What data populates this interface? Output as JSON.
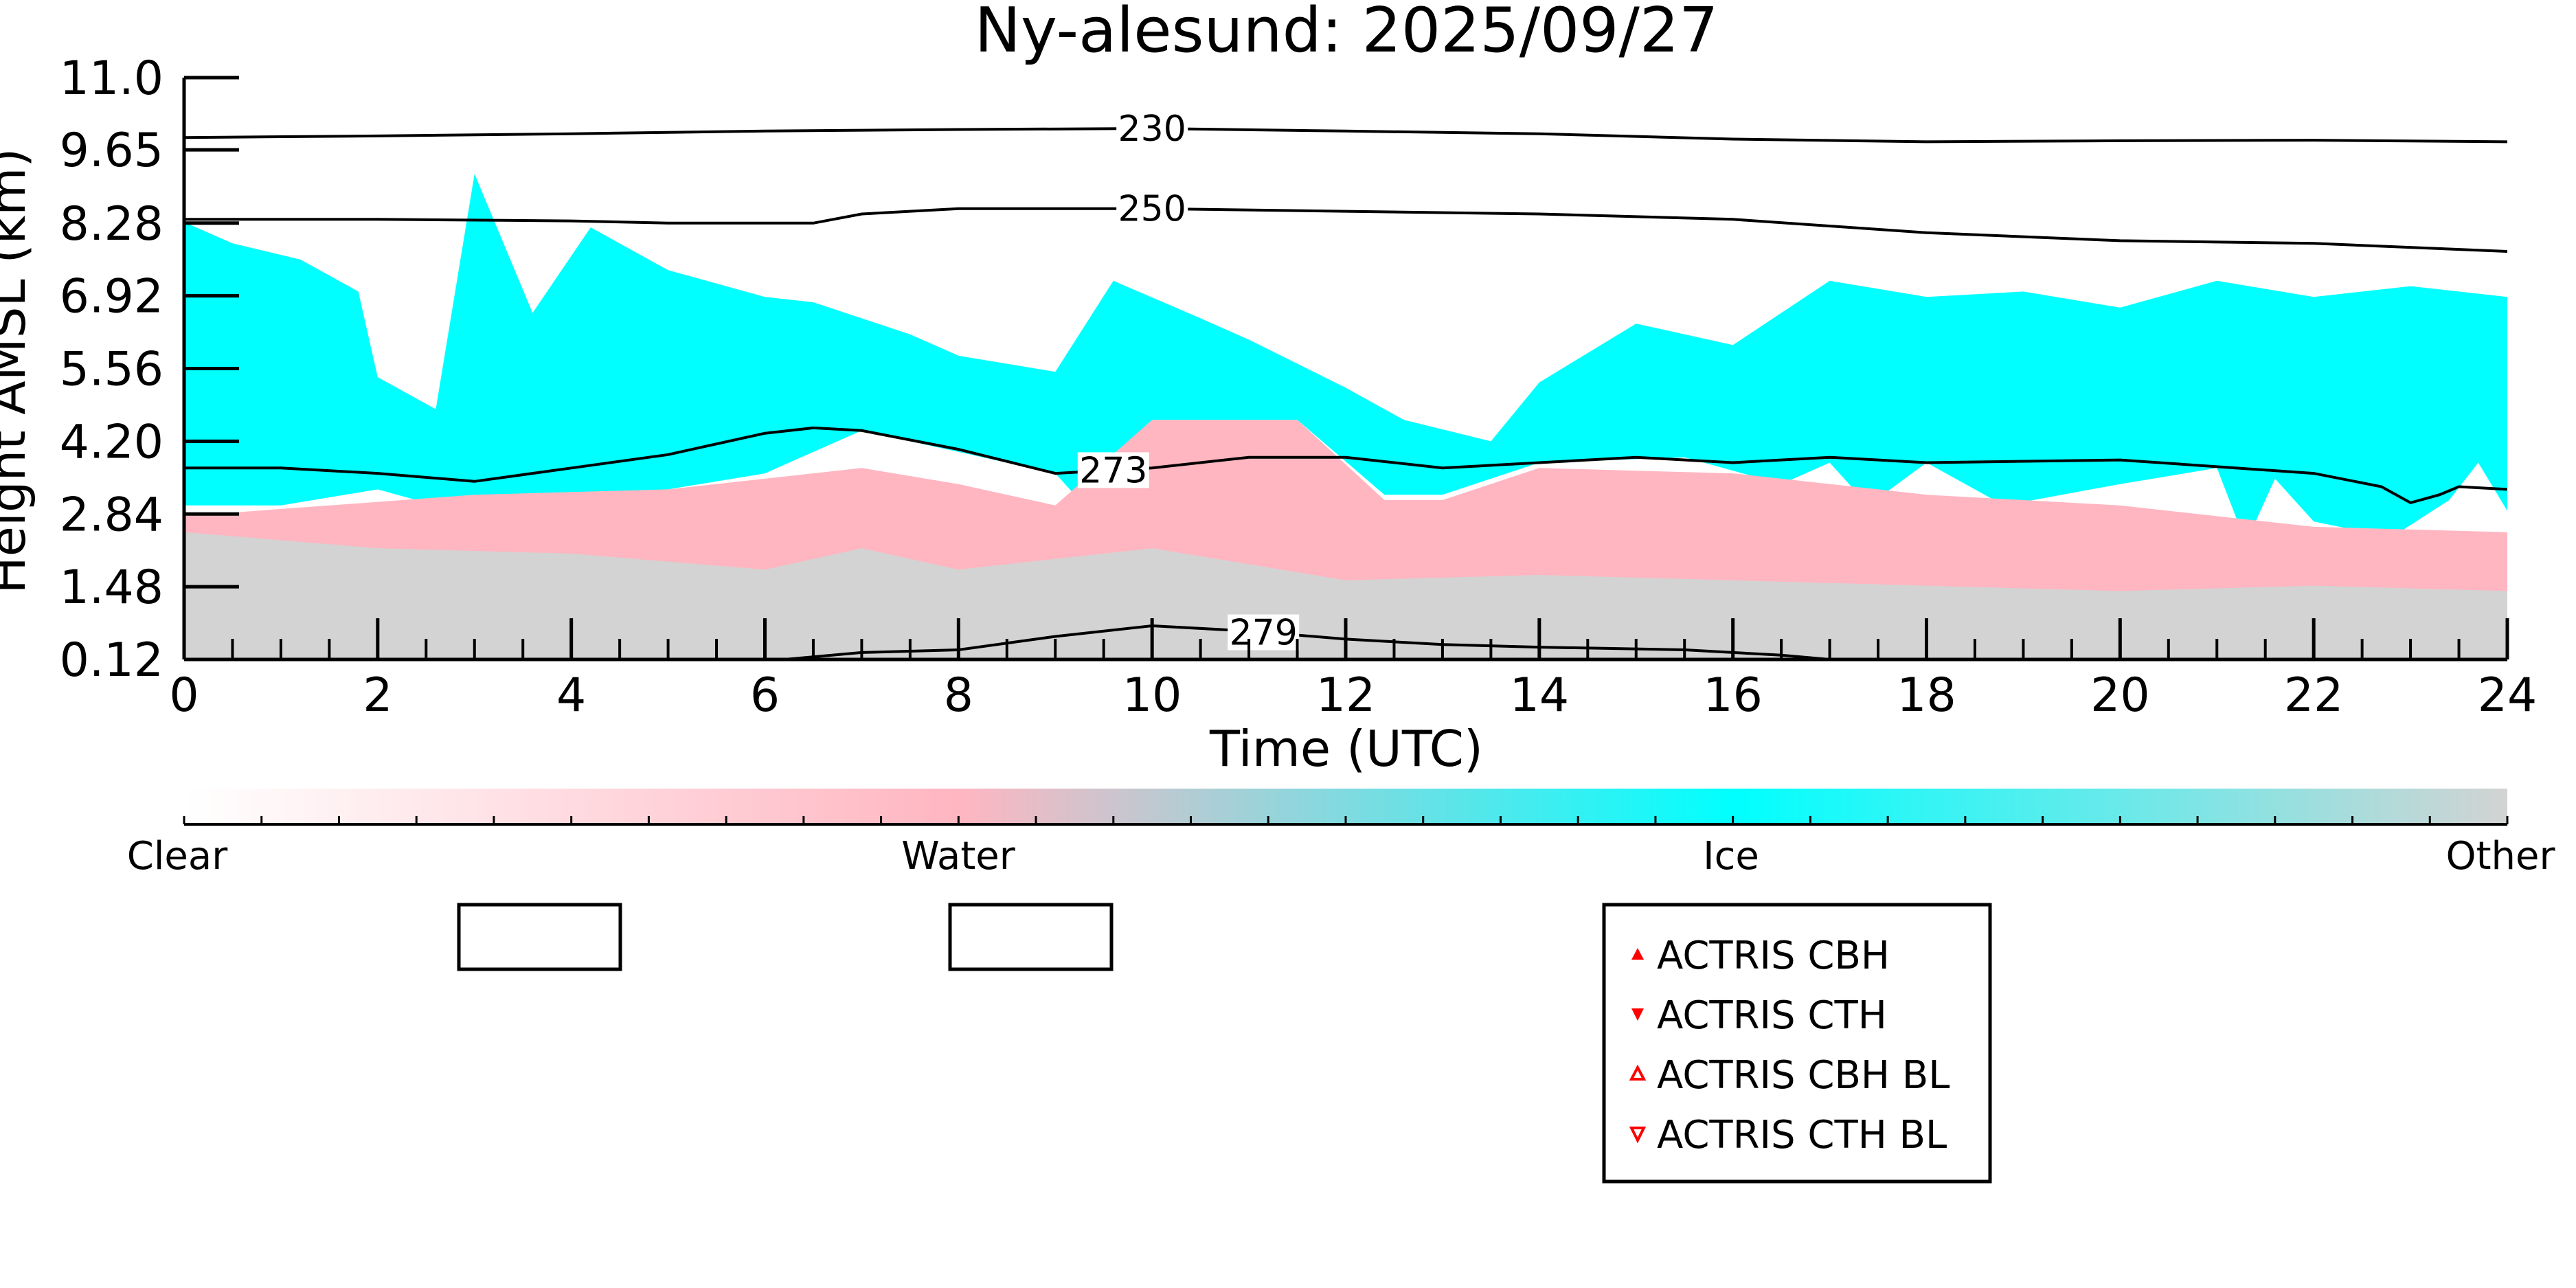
{
  "chart_data": {
    "type": "heatmap",
    "title": "Ny-alesund: 2025/09/27",
    "xlabel": "Time (UTC)",
    "ylabel": "Height AMSL (km)",
    "xlim": [
      0,
      24
    ],
    "ylim": [
      0.12,
      11.0
    ],
    "x_ticks": [
      0,
      2,
      4,
      6,
      8,
      10,
      12,
      14,
      16,
      18,
      20,
      22,
      24
    ],
    "y_ticks": [
      "0.12",
      "1.48",
      "2.84",
      "4.20",
      "5.56",
      "6.92",
      "8.28",
      "9.65",
      "11.0"
    ],
    "colors": {
      "clear": "#ffffff",
      "water": "#ffb6c1",
      "ice": "#00ffff",
      "other": "#d3d3d3",
      "marker": "#ff0000"
    },
    "layers": {
      "ice_region": [
        [
          0,
          8.3
        ],
        [
          0.5,
          7.9
        ],
        [
          1.2,
          7.6
        ],
        [
          1.8,
          7.0
        ],
        [
          2.0,
          5.4
        ],
        [
          2.6,
          4.8
        ],
        [
          3.0,
          9.2
        ],
        [
          3.6,
          6.6
        ],
        [
          4.2,
          8.2
        ],
        [
          5.0,
          7.4
        ],
        [
          6.0,
          6.9
        ],
        [
          6.5,
          6.8
        ],
        [
          7.5,
          6.2
        ],
        [
          8.0,
          5.8
        ],
        [
          9.0,
          5.5
        ],
        [
          9.6,
          7.2
        ],
        [
          10.5,
          6.5
        ],
        [
          11.0,
          6.1
        ],
        [
          12.0,
          5.2
        ],
        [
          12.6,
          4.6
        ],
        [
          13.5,
          4.2
        ],
        [
          14.0,
          5.3
        ],
        [
          15.0,
          6.4
        ],
        [
          16.0,
          6.0
        ],
        [
          17.0,
          7.2
        ],
        [
          18.0,
          6.9
        ],
        [
          19.0,
          7.0
        ],
        [
          20.0,
          6.7
        ],
        [
          21.0,
          7.2
        ],
        [
          22.0,
          6.9
        ],
        [
          23.0,
          7.1
        ],
        [
          24.0,
          6.9
        ]
      ],
      "ice_bottom": [
        [
          0,
          3.0
        ],
        [
          1.0,
          3.0
        ],
        [
          2.0,
          3.3
        ],
        [
          3.0,
          2.8
        ],
        [
          4.0,
          3.0
        ],
        [
          5.0,
          3.3
        ],
        [
          6.0,
          3.6
        ],
        [
          7.0,
          4.4
        ],
        [
          8.0,
          4.0
        ],
        [
          9.0,
          3.6
        ],
        [
          9.3,
          3.0
        ],
        [
          10.0,
          4.6
        ],
        [
          11.5,
          4.6
        ],
        [
          12.4,
          3.2
        ],
        [
          13.0,
          3.2
        ],
        [
          14.0,
          3.8
        ],
        [
          15.5,
          3.9
        ],
        [
          16.5,
          3.4
        ],
        [
          17.0,
          3.8
        ],
        [
          17.4,
          3.0
        ],
        [
          18.0,
          3.8
        ],
        [
          18.8,
          3.0
        ],
        [
          20.0,
          3.4
        ],
        [
          21.0,
          3.7
        ],
        [
          21.3,
          2.3
        ],
        [
          21.6,
          3.5
        ],
        [
          22.0,
          2.7
        ],
        [
          22.8,
          2.4
        ],
        [
          23.4,
          3.1
        ],
        [
          23.7,
          3.8
        ],
        [
          24.0,
          2.9
        ]
      ],
      "water_top": [
        [
          0,
          2.8
        ],
        [
          1.5,
          3.0
        ],
        [
          3.0,
          3.2
        ],
        [
          5.0,
          3.3
        ],
        [
          7.0,
          3.7
        ],
        [
          8.0,
          3.4
        ],
        [
          9.0,
          3.0
        ],
        [
          10.0,
          4.6
        ],
        [
          11.5,
          4.6
        ],
        [
          12.4,
          3.1
        ],
        [
          13.0,
          3.1
        ],
        [
          14.0,
          3.7
        ],
        [
          16.0,
          3.6
        ],
        [
          18.0,
          3.2
        ],
        [
          20.0,
          3.0
        ],
        [
          22.0,
          2.6
        ],
        [
          24.0,
          2.5
        ]
      ],
      "other_top": [
        [
          0,
          2.5
        ],
        [
          2.0,
          2.2
        ],
        [
          4.0,
          2.1
        ],
        [
          6.0,
          1.8
        ],
        [
          7.0,
          2.2
        ],
        [
          8.0,
          1.8
        ],
        [
          10.0,
          2.2
        ],
        [
          12.0,
          1.6
        ],
        [
          14.0,
          1.7
        ],
        [
          16.0,
          1.6
        ],
        [
          18.0,
          1.5
        ],
        [
          20.0,
          1.4
        ],
        [
          22.0,
          1.5
        ],
        [
          24.0,
          1.4
        ]
      ]
    },
    "contours": [
      {
        "label": "230",
        "label_x": 10.0,
        "points": [
          [
            0,
            9.88
          ],
          [
            2,
            9.91
          ],
          [
            4,
            9.95
          ],
          [
            6,
            10.0
          ],
          [
            8,
            10.03
          ],
          [
            10,
            10.05
          ],
          [
            12,
            10.0
          ],
          [
            14,
            9.95
          ],
          [
            16,
            9.85
          ],
          [
            18,
            9.8
          ],
          [
            20,
            9.82
          ],
          [
            22,
            9.83
          ],
          [
            24,
            9.8
          ]
        ]
      },
      {
        "label": "250",
        "label_x": 10.0,
        "points": [
          [
            0,
            8.35
          ],
          [
            2,
            8.35
          ],
          [
            4,
            8.32
          ],
          [
            5,
            8.28
          ],
          [
            6.5,
            8.28
          ],
          [
            7.0,
            8.45
          ],
          [
            8,
            8.55
          ],
          [
            10,
            8.55
          ],
          [
            12,
            8.5
          ],
          [
            14,
            8.45
          ],
          [
            16,
            8.35
          ],
          [
            18,
            8.1
          ],
          [
            20,
            7.95
          ],
          [
            22,
            7.9
          ],
          [
            24,
            7.75
          ]
        ]
      },
      {
        "label": "273",
        "label_x": 9.6,
        "points": [
          [
            0,
            3.7
          ],
          [
            1,
            3.7
          ],
          [
            2,
            3.6
          ],
          [
            3,
            3.45
          ],
          [
            4,
            3.7
          ],
          [
            5,
            3.95
          ],
          [
            6,
            4.35
          ],
          [
            6.5,
            4.45
          ],
          [
            7,
            4.4
          ],
          [
            8,
            4.05
          ],
          [
            9,
            3.6
          ],
          [
            10,
            3.7
          ],
          [
            11,
            3.9
          ],
          [
            12,
            3.9
          ],
          [
            13,
            3.7
          ],
          [
            14,
            3.8
          ],
          [
            15,
            3.9
          ],
          [
            16,
            3.8
          ],
          [
            17,
            3.9
          ],
          [
            18,
            3.8
          ],
          [
            20,
            3.85
          ],
          [
            22,
            3.6
          ],
          [
            22.7,
            3.35
          ],
          [
            23.0,
            3.05
          ],
          [
            23.3,
            3.2
          ],
          [
            23.5,
            3.35
          ],
          [
            24,
            3.3
          ]
        ]
      },
      {
        "label": "279",
        "label_x": 11.15,
        "points": [
          [
            6.2,
            0.12
          ],
          [
            7,
            0.25
          ],
          [
            8,
            0.3
          ],
          [
            9,
            0.55
          ],
          [
            10,
            0.75
          ],
          [
            11,
            0.65
          ],
          [
            12,
            0.5
          ],
          [
            13,
            0.4
          ],
          [
            14,
            0.35
          ],
          [
            15.5,
            0.3
          ],
          [
            16.5,
            0.2
          ],
          [
            17,
            0.12
          ]
        ]
      }
    ],
    "colorbar": {
      "labels": [
        "Clear",
        "Water",
        "Ice",
        "Other"
      ],
      "colors": [
        "#ffffff",
        "#ffb6c1",
        "#00ffff",
        "#d3d3d3"
      ]
    },
    "legend": {
      "entries": [
        {
          "label": "ACTRIS CBH",
          "marker": "triangle-up-filled"
        },
        {
          "label": "ACTRIS CTH",
          "marker": "triangle-down-filled"
        },
        {
          "label": "ACTRIS CBH BL",
          "marker": "triangle-up-open"
        },
        {
          "label": "ACTRIS CTH BL",
          "marker": "triangle-down-open"
        }
      ]
    }
  }
}
